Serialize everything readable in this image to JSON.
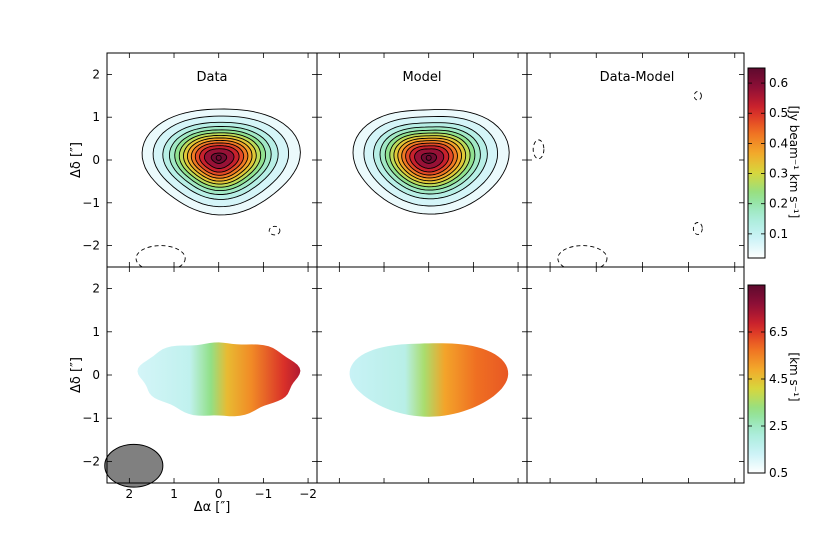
{
  "chart_data": [
    {
      "type": "contour",
      "panel": "top-left",
      "title": "Data",
      "quantity": "integrated intensity (moment 0)",
      "ylabel": "Δδ [″]",
      "xlim": [
        2.5,
        -2.2
      ],
      "ylim": [
        -2.5,
        2.5
      ],
      "yticks": [
        "2",
        "1",
        "0",
        "−1",
        "−2"
      ],
      "peak": 0.62,
      "center": [
        0.0,
        0.05
      ],
      "contour_levels": [
        0.02,
        0.05,
        0.1,
        0.15,
        0.2,
        0.25,
        0.3,
        0.35,
        0.4,
        0.45,
        0.5,
        0.55,
        0.6
      ],
      "negative_contours": [
        {
          "center": [
            1.3,
            -2.3
          ],
          "radii": [
            0.55,
            0.3
          ]
        },
        {
          "center": [
            -1.25,
            -1.65
          ],
          "radii": [
            0.12,
            0.1
          ]
        }
      ]
    },
    {
      "type": "contour",
      "panel": "top-middle",
      "title": "Model",
      "peak": 0.62,
      "center": [
        0.0,
        0.05
      ],
      "contour_levels": [
        0.02,
        0.05,
        0.1,
        0.15,
        0.2,
        0.25,
        0.3,
        0.35,
        0.4,
        0.45,
        0.5,
        0.55,
        0.6
      ]
    },
    {
      "type": "contour",
      "panel": "top-right",
      "title": "Data-Model",
      "negative_contours": [
        {
          "center": [
            1.3,
            -2.3
          ],
          "radii": [
            0.55,
            0.3
          ]
        },
        {
          "center": [
            2.25,
            0.25
          ],
          "radii": [
            0.12,
            0.22
          ]
        },
        {
          "center": [
            -1.2,
            1.5
          ],
          "radii": [
            0.08,
            0.1
          ]
        },
        {
          "center": [
            -1.2,
            -1.6
          ],
          "radii": [
            0.1,
            0.14
          ]
        }
      ]
    },
    {
      "type": "heatmap",
      "panel": "bottom-left",
      "quantity": "velocity field (moment 1)",
      "xlabel": "Δα [″]",
      "ylabel": "Δδ [″]",
      "xticks": [
        "2",
        "1",
        "0",
        "−1",
        "−2"
      ],
      "yticks": [
        "2",
        "1",
        "0",
        "−1",
        "−2"
      ],
      "xlim": [
        2.5,
        -2.2
      ],
      "ylim": [
        -2.5,
        2.5
      ],
      "velocity_range": [
        0.5,
        8.5
      ],
      "beam": {
        "center": [
          1.9,
          -2.1
        ],
        "major": 1.3,
        "minor": 1.0
      }
    },
    {
      "type": "heatmap",
      "panel": "bottom-middle",
      "quantity": "model velocity field",
      "velocity_range": [
        0.5,
        8.5
      ]
    },
    {
      "type": "heatmap",
      "panel": "bottom-right",
      "quantity": "velocity residual (empty)"
    }
  ],
  "colorbars": {
    "top": {
      "label": "[Jy beam⁻¹ km s⁻¹]",
      "range": [
        0.02,
        0.65
      ],
      "ticks": [
        "0.1",
        "0.2",
        "0.3",
        "0.4",
        "0.5",
        "0.6"
      ],
      "tick_values": [
        0.1,
        0.2,
        0.3,
        0.4,
        0.5,
        0.6
      ]
    },
    "bottom": {
      "label": "[km s⁻¹]",
      "range": [
        0.5,
        8.5
      ],
      "ticks": [
        "0.5",
        "2.5",
        "4.5",
        "6.5"
      ],
      "tick_values": [
        0.5,
        2.5,
        4.5,
        6.5
      ]
    }
  },
  "colormap": [
    "#ffffff",
    "#c8f2f6",
    "#a6ecd6",
    "#8ee08a",
    "#d6d83e",
    "#f3a82a",
    "#ef6d22",
    "#d6262a",
    "#920f37",
    "#5e0a2e"
  ]
}
